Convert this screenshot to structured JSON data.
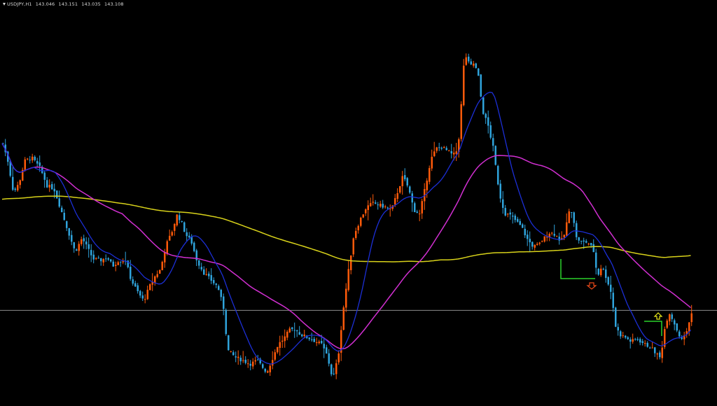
{
  "header": {
    "symbol": "USDJPY,H1",
    "open": "143.046",
    "high": "143.151",
    "low": "143.035",
    "close": "143.108"
  },
  "colors": {
    "background": "#000000",
    "bull_candle": "#ff5a0a",
    "bear_candle": "#2fa3db",
    "ma_fast": "#1c2fd6",
    "ma_mid": "#d12fd1",
    "ma_slow": "#d8d21a",
    "price_line": "#8c8c8c",
    "range_box": "#2ad12a",
    "arrow_up": "#e8e81a",
    "arrow_down": "#e84818"
  },
  "chart_data": {
    "type": "candlestick",
    "symbol": "USDJPY",
    "timeframe": "H1",
    "y_range": [
      140.3,
      146.5
    ],
    "price_line": 141.77,
    "candles": [],
    "moving_averages": [
      {
        "role": "fast",
        "color": "blue"
      },
      {
        "role": "mid",
        "color": "magenta"
      },
      {
        "role": "slow",
        "color": "yellow"
      }
    ],
    "signals": [
      {
        "type": "sell-arrow",
        "color": "red"
      },
      {
        "type": "buy-arrow",
        "color": "yellow"
      }
    ]
  }
}
